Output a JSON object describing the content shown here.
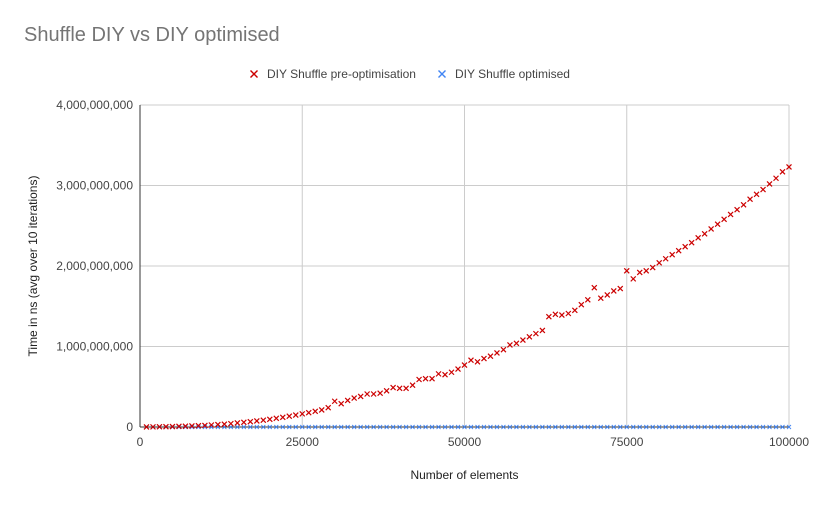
{
  "chart_data": {
    "type": "scatter",
    "title": "Shuffle DIY vs DIY optimised",
    "xlabel": "Number of elements",
    "ylabel": "Time in ns (avg over 10 iterations)",
    "xlim": [
      0,
      100000
    ],
    "ylim": [
      0,
      4000000000
    ],
    "xticks": [
      0,
      25000,
      50000,
      75000,
      100000
    ],
    "xtick_labels": [
      "0",
      "25000",
      "50000",
      "75000",
      "100000"
    ],
    "yticks": [
      0,
      1000000000,
      2000000000,
      3000000000,
      4000000000
    ],
    "ytick_labels": [
      "0",
      "1,000,000,000",
      "2,000,000,000",
      "3,000,000,000",
      "4,000,000,000"
    ],
    "grid": true,
    "legend_position": "top",
    "series": [
      {
        "name": "DIY Shuffle pre-optimisation",
        "color": "#cc0000",
        "marker": "x",
        "points": [
          [
            1000,
            1000000
          ],
          [
            2000,
            1500000
          ],
          [
            3000,
            3000000
          ],
          [
            4000,
            4000000
          ],
          [
            5000,
            6000000
          ],
          [
            6000,
            8000000
          ],
          [
            7000,
            10000000
          ],
          [
            8000,
            13000000
          ],
          [
            9000,
            16000000
          ],
          [
            10000,
            20000000
          ],
          [
            11000,
            25000000
          ],
          [
            12000,
            30000000
          ],
          [
            13000,
            35000000
          ],
          [
            14000,
            42000000
          ],
          [
            15000,
            50000000
          ],
          [
            16000,
            58000000
          ],
          [
            17000,
            66000000
          ],
          [
            18000,
            75000000
          ],
          [
            19000,
            85000000
          ],
          [
            20000,
            96000000
          ],
          [
            21000,
            108000000
          ],
          [
            22000,
            120000000
          ],
          [
            23000,
            134000000
          ],
          [
            24000,
            148000000
          ],
          [
            25000,
            163000000
          ],
          [
            26000,
            178000000
          ],
          [
            27000,
            195000000
          ],
          [
            28000,
            212000000
          ],
          [
            29000,
            240000000
          ],
          [
            30000,
            320000000
          ],
          [
            31000,
            290000000
          ],
          [
            32000,
            330000000
          ],
          [
            33000,
            360000000
          ],
          [
            34000,
            380000000
          ],
          [
            35000,
            410000000
          ],
          [
            36000,
            410000000
          ],
          [
            37000,
            420000000
          ],
          [
            38000,
            450000000
          ],
          [
            39000,
            490000000
          ],
          [
            40000,
            480000000
          ],
          [
            41000,
            480000000
          ],
          [
            42000,
            520000000
          ],
          [
            43000,
            590000000
          ],
          [
            44000,
            600000000
          ],
          [
            45000,
            600000000
          ],
          [
            46000,
            660000000
          ],
          [
            47000,
            650000000
          ],
          [
            48000,
            680000000
          ],
          [
            49000,
            720000000
          ],
          [
            50000,
            770000000
          ],
          [
            51000,
            830000000
          ],
          [
            52000,
            810000000
          ],
          [
            53000,
            850000000
          ],
          [
            54000,
            880000000
          ],
          [
            55000,
            920000000
          ],
          [
            56000,
            960000000
          ],
          [
            57000,
            1020000000
          ],
          [
            58000,
            1040000000
          ],
          [
            59000,
            1080000000
          ],
          [
            60000,
            1120000000
          ],
          [
            61000,
            1160000000
          ],
          [
            62000,
            1200000000
          ],
          [
            63000,
            1370000000
          ],
          [
            64000,
            1400000000
          ],
          [
            65000,
            1390000000
          ],
          [
            66000,
            1410000000
          ],
          [
            67000,
            1450000000
          ],
          [
            68000,
            1520000000
          ],
          [
            69000,
            1580000000
          ],
          [
            70000,
            1730000000
          ],
          [
            71000,
            1600000000
          ],
          [
            72000,
            1640000000
          ],
          [
            73000,
            1690000000
          ],
          [
            74000,
            1720000000
          ],
          [
            75000,
            1940000000
          ],
          [
            76000,
            1840000000
          ],
          [
            77000,
            1920000000
          ],
          [
            78000,
            1940000000
          ],
          [
            79000,
            1980000000
          ],
          [
            80000,
            2040000000
          ],
          [
            81000,
            2090000000
          ],
          [
            82000,
            2140000000
          ],
          [
            83000,
            2190000000
          ],
          [
            84000,
            2240000000
          ],
          [
            85000,
            2290000000
          ],
          [
            86000,
            2350000000
          ],
          [
            87000,
            2400000000
          ],
          [
            88000,
            2460000000
          ],
          [
            89000,
            2520000000
          ],
          [
            90000,
            2580000000
          ],
          [
            91000,
            2640000000
          ],
          [
            92000,
            2700000000
          ],
          [
            93000,
            2760000000
          ],
          [
            94000,
            2830000000
          ],
          [
            95000,
            2890000000
          ],
          [
            96000,
            2950000000
          ],
          [
            97000,
            3020000000
          ],
          [
            98000,
            3090000000
          ],
          [
            99000,
            3170000000
          ],
          [
            100000,
            3230000000
          ]
        ]
      },
      {
        "name": "DIY Shuffle optimised",
        "color": "#4285f4",
        "marker": "x",
        "points_summary": "approximately 0 ns at every size from 1000 to 100000 in steps of 1000",
        "x_start": 1000,
        "x_end": 100000,
        "x_step": 1000,
        "constant_value": 0
      }
    ]
  }
}
